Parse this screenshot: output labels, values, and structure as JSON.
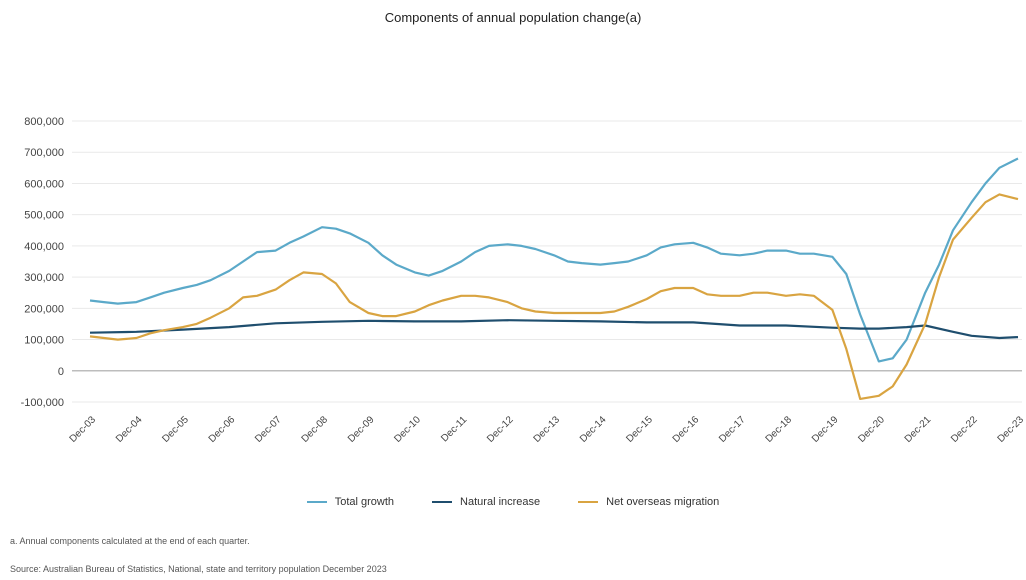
{
  "chart_data": {
    "type": "line",
    "title": "Components of annual population change(a)",
    "y_ticks": [
      "800,000",
      "700,000",
      "600,000",
      "500,000",
      "400,000",
      "300,000",
      "200,000",
      "100,000",
      "0",
      "-100,000"
    ],
    "ylim": [
      -100000,
      800000
    ],
    "categories": [
      "Dec-03",
      "Dec-04",
      "Dec-05",
      "Dec-06",
      "Dec-07",
      "Dec-08",
      "Dec-09",
      "Dec-10",
      "Dec-11",
      "Dec-12",
      "Dec-13",
      "Dec-14",
      "Dec-15",
      "Dec-16",
      "Dec-17",
      "Dec-18",
      "Dec-19",
      "Dec-20",
      "Dec-21",
      "Dec-22",
      "Dec-23"
    ],
    "grid": true,
    "legend_position": "bottom",
    "series": [
      {
        "name": "Total growth",
        "color": "#5ba9c9",
        "x": [
          2003.9,
          2004.2,
          2004.5,
          2004.9,
          2005.2,
          2005.5,
          2005.9,
          2006.2,
          2006.5,
          2006.9,
          2007.2,
          2007.5,
          2007.9,
          2008.2,
          2008.5,
          2008.9,
          2009.2,
          2009.5,
          2009.9,
          2010.2,
          2010.5,
          2010.9,
          2011.2,
          2011.5,
          2011.9,
          2012.2,
          2012.5,
          2012.9,
          2013.2,
          2013.5,
          2013.9,
          2014.2,
          2014.5,
          2014.9,
          2015.2,
          2015.5,
          2015.9,
          2016.2,
          2016.5,
          2016.9,
          2017.2,
          2017.5,
          2017.9,
          2018.2,
          2018.5,
          2018.9,
          2019.2,
          2019.5,
          2019.9,
          2020.2,
          2020.5,
          2020.9,
          2021.2,
          2021.5,
          2021.9,
          2022.2,
          2022.5,
          2022.9,
          2023.2,
          2023.5,
          2023.9
        ],
        "y": [
          225000,
          220000,
          215000,
          220000,
          235000,
          250000,
          265000,
          275000,
          290000,
          320000,
          350000,
          380000,
          385000,
          410000,
          430000,
          460000,
          455000,
          440000,
          410000,
          370000,
          340000,
          315000,
          305000,
          320000,
          350000,
          380000,
          400000,
          405000,
          400000,
          390000,
          370000,
          350000,
          345000,
          340000,
          345000,
          350000,
          370000,
          395000,
          405000,
          410000,
          395000,
          375000,
          370000,
          375000,
          385000,
          385000,
          375000,
          375000,
          365000,
          310000,
          180000,
          30000,
          40000,
          100000,
          250000,
          340000,
          450000,
          540000,
          600000,
          650000,
          680000
        ]
      },
      {
        "name": "Natural increase",
        "color": "#1f4e6e",
        "x": [
          2003.9,
          2004.9,
          2005.9,
          2006.9,
          2007.9,
          2008.9,
          2009.9,
          2010.9,
          2011.9,
          2012.9,
          2013.9,
          2014.9,
          2015.9,
          2016.9,
          2017.9,
          2018.9,
          2019.9,
          2020.5,
          2020.9,
          2021.5,
          2021.9,
          2022.5,
          2022.9,
          2023.5,
          2023.9
        ],
        "y": [
          122000,
          125000,
          132000,
          140000,
          152000,
          157000,
          160000,
          158000,
          158000,
          162000,
          160000,
          158000,
          155000,
          155000,
          145000,
          145000,
          138000,
          135000,
          135000,
          140000,
          145000,
          125000,
          112000,
          105000,
          108000
        ]
      },
      {
        "name": "Net overseas migration",
        "color": "#d9a441",
        "x": [
          2003.9,
          2004.2,
          2004.5,
          2004.9,
          2005.2,
          2005.5,
          2005.9,
          2006.2,
          2006.5,
          2006.9,
          2007.2,
          2007.5,
          2007.9,
          2008.2,
          2008.5,
          2008.9,
          2009.2,
          2009.5,
          2009.9,
          2010.2,
          2010.5,
          2010.9,
          2011.2,
          2011.5,
          2011.9,
          2012.2,
          2012.5,
          2012.9,
          2013.2,
          2013.5,
          2013.9,
          2014.2,
          2014.5,
          2014.9,
          2015.2,
          2015.5,
          2015.9,
          2016.2,
          2016.5,
          2016.9,
          2017.2,
          2017.5,
          2017.9,
          2018.2,
          2018.5,
          2018.9,
          2019.2,
          2019.5,
          2019.9,
          2020.2,
          2020.5,
          2020.9,
          2021.2,
          2021.5,
          2021.9,
          2022.2,
          2022.5,
          2022.9,
          2023.2,
          2023.5,
          2023.9
        ],
        "y": [
          110000,
          105000,
          100000,
          105000,
          120000,
          130000,
          140000,
          150000,
          170000,
          200000,
          235000,
          240000,
          260000,
          290000,
          315000,
          310000,
          280000,
          220000,
          185000,
          175000,
          175000,
          190000,
          210000,
          225000,
          240000,
          240000,
          235000,
          220000,
          200000,
          190000,
          185000,
          185000,
          185000,
          185000,
          190000,
          205000,
          230000,
          255000,
          265000,
          265000,
          245000,
          240000,
          240000,
          250000,
          250000,
          240000,
          245000,
          240000,
          195000,
          70000,
          -90000,
          -80000,
          -50000,
          20000,
          150000,
          300000,
          420000,
          490000,
          540000,
          565000,
          550000
        ]
      }
    ]
  },
  "note": "a. Annual components calculated at the end of each quarter.",
  "source": "Source: Australian Bureau of Statistics, National, state and territory population December 2023"
}
